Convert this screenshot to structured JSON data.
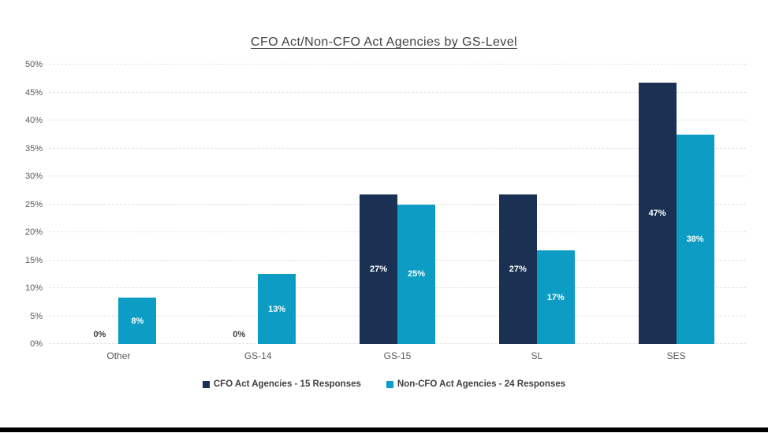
{
  "chart_data": {
    "type": "bar",
    "title": "CFO Act/Non-CFO Act Agencies by GS-Level",
    "categories": [
      "Other",
      "GS-14",
      "GS-15",
      "SL",
      "SES"
    ],
    "series": [
      {
        "name": "CFO Act Agencies - 15 Responses",
        "color": "#1A3153",
        "values": [
          0,
          0,
          26.7,
          26.7,
          46.7
        ],
        "labels": [
          "0%",
          "0%",
          "27%",
          "27%",
          "47%"
        ]
      },
      {
        "name": "Non-CFO Act Agencies - 24 Responses",
        "color": "#0C9CC4",
        "values": [
          8.3,
          12.5,
          25,
          16.7,
          37.5
        ],
        "labels": [
          "8%",
          "13%",
          "25%",
          "17%",
          "38%"
        ]
      }
    ],
    "y_axis": {
      "min": 0,
      "max": 50,
      "step": 5,
      "tick_labels": [
        "0%",
        "5%",
        "10%",
        "15%",
        "20%",
        "25%",
        "30%",
        "35%",
        "40%",
        "45%",
        "50%"
      ]
    },
    "grid": true,
    "legend_position": "bottom",
    "colors": {
      "title_text": "#404040",
      "axis_text": "#595959",
      "gridline": "#e2e2e2",
      "zero_label_text": "#404040",
      "bar_label_text": "#ffffff",
      "bottom_bar": "#000000",
      "background": "#ffffff"
    }
  }
}
